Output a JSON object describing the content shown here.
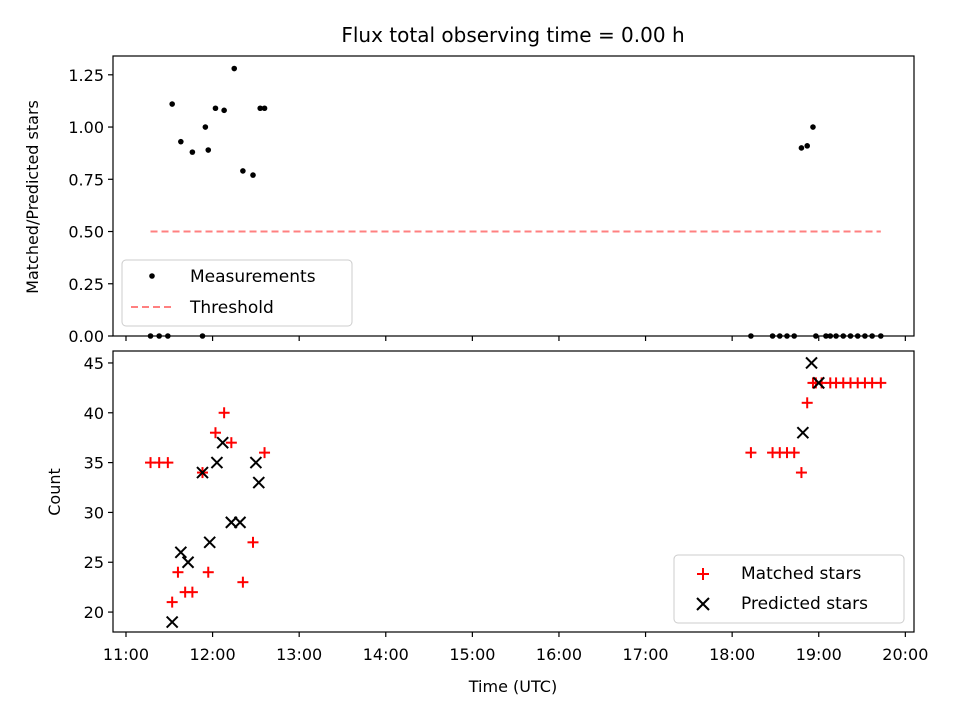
{
  "chart_data": [
    {
      "type": "scatter",
      "title": "Flux total observing time = 0.00 h",
      "xlabel": "",
      "ylabel": "Matched/Predicted stars",
      "ylim": [
        0,
        1.34
      ],
      "yticks": [
        "0.00",
        "0.25",
        "0.50",
        "0.75",
        "1.00",
        "1.25"
      ],
      "ytick_values": [
        0,
        0.25,
        0.5,
        0.75,
        1.0,
        1.25
      ],
      "legend_position": "lower-left",
      "legend": [
        "Measurements",
        "Threshold"
      ],
      "series": [
        {
          "name": "Measurements",
          "marker": "dot",
          "color": "#000000",
          "x": [
            "11:17",
            "11:23",
            "11:29",
            "11:32",
            "11:38",
            "11:46",
            "11:53",
            "11:55",
            "11:57",
            "12:02",
            "12:08",
            "12:15",
            "12:21",
            "12:28",
            "12:33",
            "12:36",
            "18:13",
            "18:28",
            "18:33",
            "18:38",
            "18:43",
            "18:48",
            "18:52",
            "18:56",
            "18:58",
            "19:05",
            "19:08",
            "19:12",
            "19:17",
            "19:22",
            "19:27",
            "19:32",
            "19:37",
            "19:43"
          ],
          "y": [
            0,
            0,
            0,
            1.11,
            0.93,
            0.88,
            0,
            1.0,
            0.89,
            1.09,
            1.08,
            1.28,
            0.79,
            0.77,
            1.09,
            1.09,
            0,
            0,
            0,
            0,
            0,
            0.9,
            0.91,
            1.0,
            0,
            0,
            0,
            0,
            0,
            0,
            0,
            0,
            0,
            0
          ]
        },
        {
          "name": "Threshold",
          "style": "dashed",
          "color": "#ff8080",
          "x": [
            "11:17",
            "19:43"
          ],
          "y": [
            0.5,
            0.5
          ]
        }
      ]
    },
    {
      "type": "scatter",
      "title": "",
      "xlabel": "Time (UTC)",
      "ylabel": "Count",
      "ylim": [
        18,
        46.2
      ],
      "xlim": [
        "10:51",
        "20:06"
      ],
      "xticks": [
        "11:00",
        "12:00",
        "13:00",
        "14:00",
        "15:00",
        "16:00",
        "17:00",
        "18:00",
        "19:00",
        "20:00"
      ],
      "yticks": [
        "20",
        "25",
        "30",
        "35",
        "40",
        "45"
      ],
      "ytick_values": [
        20,
        25,
        30,
        35,
        40,
        45
      ],
      "legend_position": "lower-right",
      "legend": [
        "Matched stars",
        "Predicted stars"
      ],
      "series": [
        {
          "name": "Matched stars",
          "marker": "plus",
          "color": "#ff0000",
          "x": [
            "11:17",
            "11:23",
            "11:29",
            "11:32",
            "11:36",
            "11:41",
            "11:46",
            "11:53",
            "11:57",
            "12:02",
            "12:08",
            "12:13",
            "12:21",
            "12:28",
            "12:36",
            "18:13",
            "18:28",
            "18:33",
            "18:38",
            "18:43",
            "18:48",
            "18:52",
            "18:56",
            "18:58",
            "19:02",
            "19:08",
            "19:12",
            "19:17",
            "19:22",
            "19:27",
            "19:32",
            "19:37",
            "19:43"
          ],
          "y": [
            35,
            35,
            35,
            21,
            24,
            22,
            22,
            34,
            24,
            38,
            40,
            37,
            23,
            27,
            36,
            36,
            36,
            36,
            36,
            36,
            34,
            41,
            43,
            43,
            43,
            43,
            43,
            43,
            43,
            43,
            43,
            43,
            43
          ]
        },
        {
          "name": "Predicted stars",
          "marker": "x",
          "color": "#000000",
          "x": [
            "11:32",
            "11:38",
            "11:43",
            "11:53",
            "11:58",
            "12:03",
            "12:07",
            "12:13",
            "12:19",
            "12:30",
            "12:32",
            "18:49",
            "18:55",
            "19:00"
          ],
          "y": [
            19,
            26,
            25,
            34,
            27,
            35,
            37,
            29,
            29,
            35,
            33,
            38,
            45,
            43
          ]
        }
      ]
    }
  ]
}
